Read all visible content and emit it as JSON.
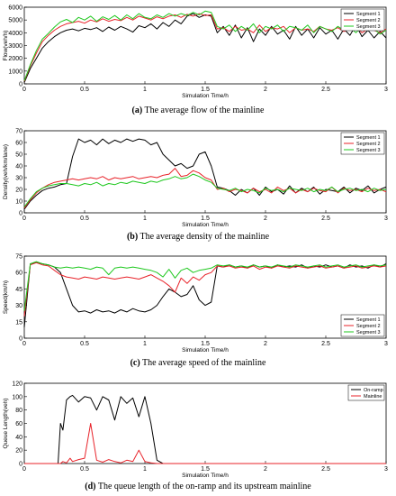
{
  "colors": {
    "Segment 1": "#000000",
    "Segment 2": "#e8232a",
    "Segment 3": "#1ec81e",
    "On-ramp": "#000000",
    "Mainline": "#e8232a"
  },
  "chart_data": [
    {
      "type": "line",
      "label": "(a)",
      "caption": "The average flow of the mainline",
      "xlabel": "Simulation Time/h",
      "ylabel": "Flow(veh/h)",
      "xlim": [
        0,
        3
      ],
      "ylim": [
        0,
        6000
      ],
      "xticks": [
        "0",
        "0.5",
        "1",
        "1.5",
        "2",
        "2.5",
        "3"
      ],
      "yticks": [
        "0",
        "1000",
        "2000",
        "3000",
        "4000",
        "5000",
        "6000"
      ],
      "legend_position": "top-right",
      "grid": false,
      "x": [
        0,
        0.05,
        0.1,
        0.15,
        0.2,
        0.25,
        0.3,
        0.35,
        0.4,
        0.45,
        0.5,
        0.55,
        0.6,
        0.65,
        0.7,
        0.75,
        0.8,
        0.85,
        0.9,
        0.95,
        1.0,
        1.05,
        1.1,
        1.15,
        1.2,
        1.25,
        1.3,
        1.35,
        1.4,
        1.45,
        1.5,
        1.55,
        1.6,
        1.65,
        1.7,
        1.75,
        1.8,
        1.85,
        1.9,
        1.95,
        2.0,
        2.05,
        2.1,
        2.15,
        2.2,
        2.25,
        2.3,
        2.35,
        2.4,
        2.45,
        2.5,
        2.55,
        2.6,
        2.65,
        2.7,
        2.75,
        2.8,
        2.85,
        2.9,
        2.95,
        3.0
      ],
      "series": [
        {
          "name": "Segment 1",
          "values": [
            100,
            1200,
            2000,
            2800,
            3300,
            3700,
            4000,
            4200,
            4300,
            4150,
            4350,
            4250,
            4400,
            4100,
            4450,
            4200,
            4500,
            4300,
            4050,
            4550,
            4400,
            4700,
            4300,
            4800,
            4500,
            5000,
            4700,
            5300,
            5500,
            5200,
            5400,
            5300,
            4000,
            4500,
            3800,
            4600,
            3600,
            4400,
            3300,
            4300,
            3800,
            4500,
            3900,
            4200,
            3500,
            4500,
            3800,
            4300,
            3600,
            4400,
            3900,
            4200,
            3500,
            4300,
            3800,
            4600,
            3700,
            4200,
            3600,
            4100,
            3600
          ]
        },
        {
          "name": "Segment 2",
          "values": [
            200,
            1400,
            2400,
            3300,
            3800,
            4200,
            4500,
            4700,
            4800,
            4900,
            4750,
            5000,
            4850,
            5100,
            4900,
            5050,
            4950,
            5200,
            5000,
            5300,
            5150,
            5000,
            5250,
            5100,
            5300,
            5400,
            5200,
            5450,
            5300,
            5500,
            5350,
            5400,
            4300,
            4400,
            4100,
            4500,
            4200,
            4300,
            4000,
            4600,
            4100,
            4400,
            4300,
            4500,
            4000,
            4400,
            4200,
            4300,
            4100,
            4500,
            4300,
            4200,
            4400,
            4100,
            4300,
            4500,
            4000,
            4300,
            4200,
            4000,
            4300
          ]
        },
        {
          "name": "Segment 3",
          "values": [
            250,
            1500,
            2600,
            3500,
            3950,
            4450,
            4850,
            5050,
            4800,
            5200,
            5000,
            5300,
            4900,
            5250,
            5050,
            5350,
            5000,
            5400,
            5100,
            5500,
            5200,
            5100,
            5400,
            5200,
            5500,
            5300,
            5500,
            5350,
            5600,
            5400,
            5700,
            5600,
            4500,
            4300,
            4600,
            4100,
            4500,
            4200,
            4700,
            4000,
            4500,
            4300,
            4600,
            4100,
            4500,
            4400,
            4200,
            4600,
            4000,
            4500,
            4300,
            4100,
            4500,
            4200,
            4400,
            4000,
            4500,
            4200,
            4300,
            3900,
            4200
          ]
        }
      ]
    },
    {
      "type": "line",
      "label": "(b)",
      "caption": "The average density of the mainline",
      "xlabel": "Simulation Time/h",
      "ylabel": "Density(veh/km/lane)",
      "xlim": [
        0,
        3
      ],
      "ylim": [
        0,
        70
      ],
      "xticks": [
        "0",
        "0.5",
        "1",
        "1.5",
        "2",
        "2.5",
        "3"
      ],
      "yticks": [
        "0",
        "10",
        "20",
        "30",
        "40",
        "50",
        "60",
        "70"
      ],
      "legend_position": "top-right",
      "grid": false,
      "x": [
        0,
        0.05,
        0.1,
        0.15,
        0.2,
        0.25,
        0.3,
        0.35,
        0.4,
        0.45,
        0.5,
        0.55,
        0.6,
        0.65,
        0.7,
        0.75,
        0.8,
        0.85,
        0.9,
        0.95,
        1.0,
        1.05,
        1.1,
        1.15,
        1.2,
        1.25,
        1.3,
        1.35,
        1.4,
        1.45,
        1.5,
        1.55,
        1.6,
        1.65,
        1.7,
        1.75,
        1.8,
        1.85,
        1.9,
        1.95,
        2.0,
        2.05,
        2.1,
        2.15,
        2.2,
        2.25,
        2.3,
        2.35,
        2.4,
        2.45,
        2.5,
        2.55,
        2.6,
        2.65,
        2.7,
        2.75,
        2.8,
        2.85,
        2.9,
        2.95,
        3.0
      ],
      "series": [
        {
          "name": "Segment 1",
          "values": [
            3,
            10,
            15,
            19,
            21,
            22,
            24,
            25,
            48,
            63,
            60,
            62,
            58,
            63,
            59,
            62,
            60,
            63,
            61,
            63,
            62,
            58,
            60,
            50,
            45,
            40,
            42,
            38,
            40,
            50,
            52,
            40,
            22,
            21,
            19,
            15,
            20,
            17,
            21,
            15,
            22,
            18,
            20,
            16,
            23,
            17,
            21,
            18,
            22,
            16,
            20,
            19,
            18,
            22,
            17,
            21,
            19,
            23,
            17,
            20,
            22
          ]
        },
        {
          "name": "Segment 2",
          "values": [
            4,
            11,
            17,
            21,
            24,
            26,
            27,
            28,
            29,
            28,
            29,
            30,
            29,
            31,
            28,
            30,
            29,
            30,
            31,
            29,
            30,
            31,
            30,
            32,
            33,
            38,
            31,
            32,
            36,
            34,
            30,
            28,
            20,
            21,
            18,
            20,
            19,
            17,
            21,
            18,
            20,
            17,
            22,
            19,
            21,
            17,
            20,
            18,
            21,
            19,
            18,
            22,
            17,
            21,
            19,
            20,
            18,
            21,
            19,
            20,
            18
          ]
        },
        {
          "name": "Segment 3",
          "values": [
            5,
            12,
            18,
            21,
            23,
            24,
            25,
            25,
            24,
            23,
            25,
            24,
            26,
            23,
            25,
            24,
            26,
            25,
            27,
            26,
            25,
            27,
            26,
            28,
            29,
            31,
            29,
            30,
            33,
            31,
            28,
            26,
            21,
            20,
            19,
            21,
            18,
            20,
            19,
            17,
            21,
            19,
            20,
            18,
            21,
            20,
            19,
            21,
            18,
            20,
            19,
            22,
            18,
            20,
            21,
            19,
            20,
            18,
            21,
            19,
            20
          ]
        }
      ]
    },
    {
      "type": "line",
      "label": "(c)",
      "caption": "The average speed of the mainline",
      "xlabel": "Simulation Time/h",
      "ylabel": "Speed(km/h)",
      "xlim": [
        0,
        3
      ],
      "ylim": [
        0,
        75
      ],
      "xticks": [
        "0",
        "0.5",
        "1",
        "1.5",
        "2",
        "2.5",
        "3"
      ],
      "yticks": [
        "0",
        "15",
        "30",
        "45",
        "60",
        "75"
      ],
      "legend_position": "bottom-right",
      "grid": false,
      "x": [
        0,
        0.05,
        0.1,
        0.15,
        0.2,
        0.25,
        0.3,
        0.35,
        0.4,
        0.45,
        0.5,
        0.55,
        0.6,
        0.65,
        0.7,
        0.75,
        0.8,
        0.85,
        0.9,
        0.95,
        1.0,
        1.05,
        1.1,
        1.15,
        1.2,
        1.25,
        1.3,
        1.35,
        1.4,
        1.45,
        1.5,
        1.55,
        1.6,
        1.65,
        1.7,
        1.75,
        1.8,
        1.85,
        1.9,
        1.95,
        2.0,
        2.05,
        2.1,
        2.15,
        2.2,
        2.25,
        2.3,
        2.35,
        2.4,
        2.45,
        2.5,
        2.55,
        2.6,
        2.65,
        2.7,
        2.75,
        2.8,
        2.85,
        2.9,
        2.95,
        3.0
      ],
      "series": [
        {
          "name": "Segment 1",
          "values": [
            10,
            68,
            69,
            68,
            67,
            65,
            60,
            45,
            30,
            24,
            25,
            23,
            26,
            24,
            25,
            23,
            26,
            24,
            27,
            25,
            24,
            26,
            30,
            38,
            45,
            42,
            38,
            40,
            48,
            35,
            30,
            33,
            66,
            65,
            67,
            65,
            66,
            64,
            67,
            65,
            66,
            64,
            67,
            65,
            66,
            65,
            67,
            64,
            66,
            65,
            67,
            65,
            66,
            64,
            67,
            65,
            66,
            64,
            67,
            65,
            68
          ]
        },
        {
          "name": "Segment 2",
          "values": [
            20,
            67,
            69,
            67,
            66,
            62,
            58,
            56,
            55,
            54,
            56,
            55,
            54,
            56,
            55,
            54,
            55,
            56,
            55,
            54,
            56,
            58,
            55,
            52,
            48,
            42,
            55,
            50,
            56,
            53,
            58,
            60,
            66,
            65,
            66,
            64,
            65,
            64,
            66,
            63,
            65,
            64,
            66,
            65,
            64,
            66,
            65,
            64,
            65,
            66,
            64,
            65,
            66,
            64,
            65,
            66,
            64,
            65,
            66,
            65,
            66
          ]
        },
        {
          "name": "Segment 3",
          "values": [
            25,
            68,
            70,
            68,
            67,
            65,
            64,
            65,
            64,
            65,
            64,
            63,
            65,
            64,
            58,
            64,
            65,
            64,
            65,
            64,
            63,
            62,
            60,
            56,
            63,
            55,
            62,
            64,
            60,
            62,
            63,
            64,
            67,
            66,
            67,
            65,
            66,
            65,
            67,
            65,
            66,
            65,
            67,
            66,
            65,
            67,
            66,
            65,
            66,
            67,
            65,
            66,
            67,
            65,
            66,
            67,
            65,
            66,
            67,
            66,
            67
          ]
        }
      ]
    },
    {
      "type": "line",
      "label": "(d)",
      "caption": "The queue length of the on-ramp and its upstream mainline",
      "xlabel": "Simulation Time/h",
      "ylabel": "Queue Length(veh)",
      "xlim": [
        0,
        3
      ],
      "ylim": [
        0,
        120
      ],
      "xticks": [
        "0",
        "0.5",
        "1",
        "1.5",
        "2",
        "2.5",
        "3"
      ],
      "yticks": [
        "0",
        "20",
        "40",
        "60",
        "80",
        "100",
        "120"
      ],
      "legend_position": "top-right",
      "grid": false,
      "x": [
        0,
        0.05,
        0.1,
        0.15,
        0.2,
        0.25,
        0.28,
        0.3,
        0.32,
        0.35,
        0.38,
        0.4,
        0.45,
        0.5,
        0.55,
        0.6,
        0.65,
        0.7,
        0.75,
        0.8,
        0.85,
        0.9,
        0.95,
        1.0,
        1.05,
        1.1,
        1.15,
        1.2,
        1.3,
        1.4,
        1.5,
        1.6,
        1.7,
        1.8,
        1.9,
        2.0,
        2.1,
        2.2,
        2.3,
        2.4,
        2.5,
        2.6,
        2.7,
        2.8,
        2.9,
        3.0
      ],
      "series": [
        {
          "name": "On-ramp",
          "values": [
            0,
            0,
            0,
            0,
            0,
            0,
            0,
            60,
            50,
            95,
            100,
            102,
            92,
            100,
            98,
            80,
            100,
            95,
            65,
            100,
            90,
            98,
            70,
            100,
            60,
            5,
            0,
            0,
            0,
            0,
            0,
            0,
            0,
            0,
            0,
            0,
            0,
            0,
            0,
            0,
            0,
            0,
            0,
            0,
            0,
            0
          ]
        },
        {
          "name": "Mainline",
          "values": [
            0,
            0,
            0,
            0,
            0,
            0,
            0,
            0,
            3,
            1,
            8,
            3,
            6,
            8,
            60,
            5,
            2,
            6,
            3,
            1,
            5,
            3,
            20,
            3,
            1,
            0,
            0,
            0,
            0,
            0,
            0,
            0,
            0,
            0,
            0,
            0,
            0,
            0,
            0,
            0,
            0,
            0,
            0,
            0,
            0,
            0
          ]
        }
      ]
    }
  ]
}
